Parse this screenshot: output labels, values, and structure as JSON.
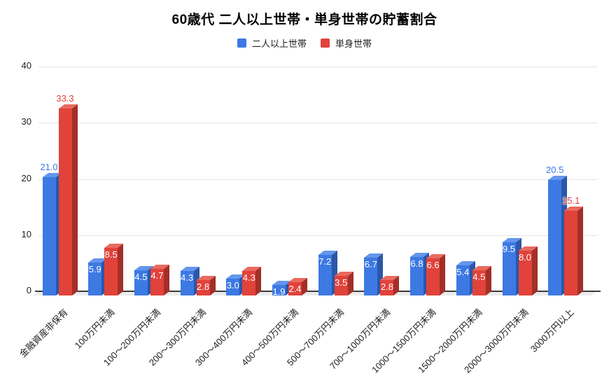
{
  "title": "60歳代 二人以上世帯・単身世帯の貯蓄割合",
  "chart_data": {
    "type": "bar",
    "style": "3d-grouped-columns",
    "title": "60歳代 二人以上世帯・単身世帯の貯蓄割合",
    "categories": [
      "金融資産非保有",
      "100万円未満",
      "100〜200万円未満",
      "200〜300万円未満",
      "300〜400万円未満",
      "400〜500万円未満",
      "500〜700万円未満",
      "700〜1000万円未満",
      "1000〜1500万円未満",
      "1500〜2000万円未満",
      "2000〜3000万円未満",
      "3000万円以上"
    ],
    "series": [
      {
        "name": "二人以上世帯",
        "values": [
          21.0,
          5.9,
          4.5,
          4.3,
          3.0,
          1.9,
          7.2,
          6.7,
          6.8,
          5.4,
          9.5,
          20.5
        ],
        "colors": {
          "front": "#3d79e3",
          "top": "#6496ec",
          "side": "#2b57a8",
          "label": "#3b78e7"
        }
      },
      {
        "name": "単身世帯",
        "values": [
          33.3,
          8.5,
          4.7,
          2.8,
          4.3,
          2.4,
          3.5,
          2.8,
          6.6,
          4.5,
          8.0,
          15.1
        ],
        "colors": {
          "front": "#e1423a",
          "top": "#e96a5f",
          "side": "#a32f28",
          "label": "#e23f36"
        }
      }
    ],
    "xlabel": "",
    "ylabel": "",
    "ylim": [
      0,
      40
    ],
    "yticks": [
      0,
      10,
      20,
      30,
      40
    ],
    "grid": true,
    "legend_position": "top",
    "value_label_decimals": 1,
    "label_outside_threshold": 10
  },
  "axis_style": {
    "grid_color": "#e3e3e3",
    "axis_color": "#3c3c3c",
    "floor_color": "#ebebeb",
    "text_color": "#212121"
  }
}
